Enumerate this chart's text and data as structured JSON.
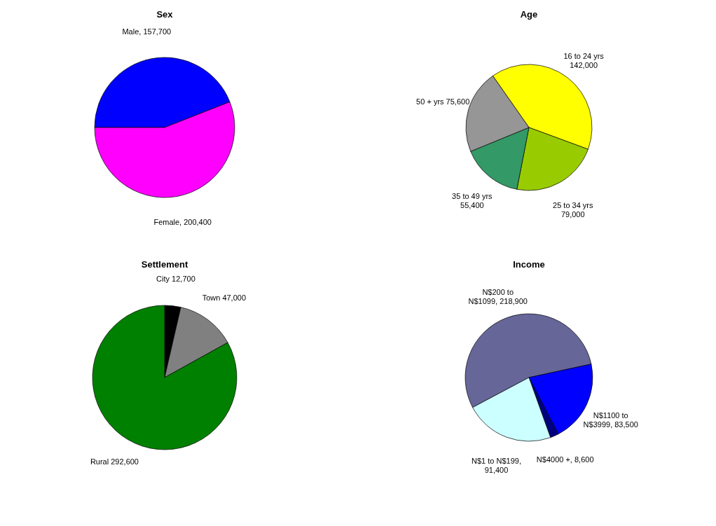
{
  "chart_data": [
    {
      "type": "pie",
      "title": "Sex",
      "categories": [
        "Male, 157,700",
        "Female, 200,400"
      ],
      "values": [
        157700,
        200400
      ],
      "colors": [
        "#0000ff",
        "#ff00ff"
      ]
    },
    {
      "type": "pie",
      "title": "Age",
      "categories": [
        "16 to 24 yrs\n142,000",
        "25 to 34 yrs\n79,000",
        "35 to 49 yrs\n55,400",
        "50 + yrs 75,600"
      ],
      "values": [
        142000,
        79000,
        55400,
        75600
      ],
      "colors": [
        "#ffff00",
        "#99cc00",
        "#339966",
        "#969696"
      ]
    },
    {
      "type": "pie",
      "title": "Settlement",
      "categories": [
        "City 12,700",
        "Town 47,000",
        "Rural 292,600"
      ],
      "values": [
        12700,
        47000,
        292600
      ],
      "colors": [
        "#000000",
        "#808080",
        "#008000"
      ]
    },
    {
      "type": "pie",
      "title": "Income",
      "categories": [
        "N$200 to\nN$1099, 218,900",
        "N$1100 to\nN$3999, 83,500",
        "N$4000 +, 8,600",
        "N$1 to N$199,\n91,400"
      ],
      "values": [
        218900,
        83500,
        8600,
        91400
      ],
      "colors": [
        "#666699",
        "#0000ff",
        "#000080",
        "#ccffff"
      ]
    }
  ]
}
